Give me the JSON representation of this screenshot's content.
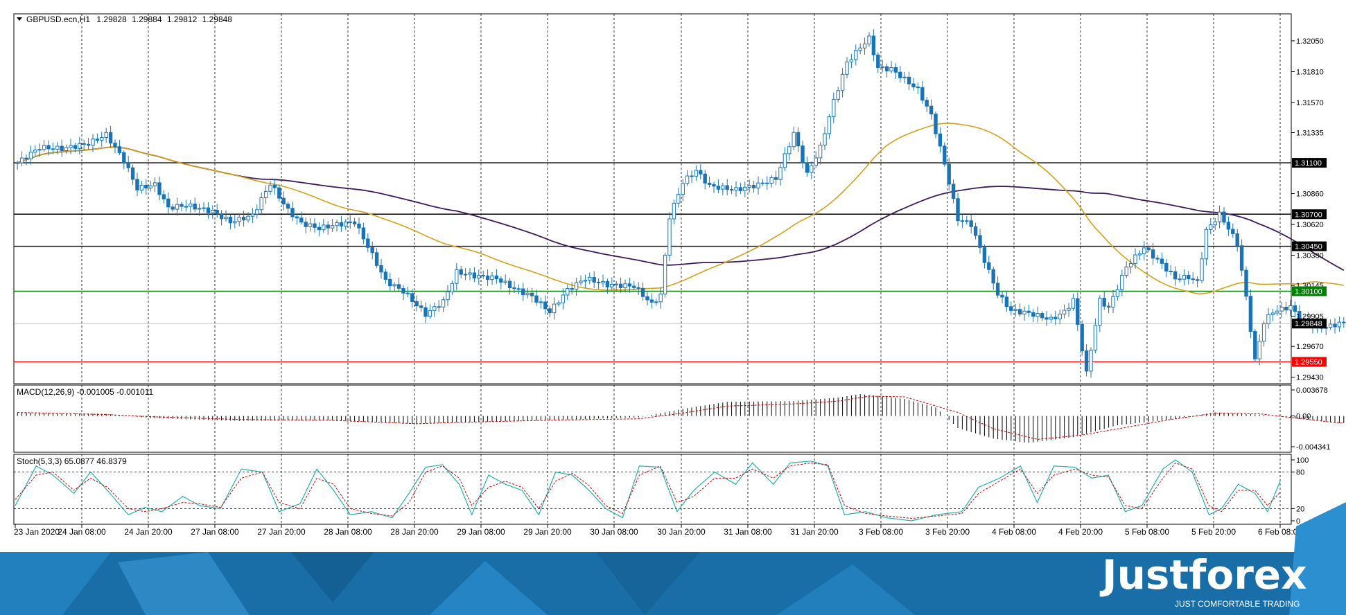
{
  "chart_data": [
    {
      "panel": "price",
      "type": "candlestick",
      "header": {
        "symbol": "GBPUSD.ecn,H1",
        "open": "1.29828",
        "high": "1.29884",
        "low": "1.29812",
        "close": "1.29848"
      },
      "x_tick_labels": [
        "23 Jan 2020",
        "24 Jan 08:00",
        "24 Jan 20:00",
        "27 Jan 08:00",
        "27 Jan 20:00",
        "28 Jan 08:00",
        "28 Jan 20:00",
        "29 Jan 08:00",
        "29 Jan 20:00",
        "30 Jan 08:00",
        "30 Jan 20:00",
        "31 Jan 08:00",
        "31 Jan 20:00",
        "3 Feb 08:00",
        "3 Feb 20:00",
        "4 Feb 08:00",
        "4 Feb 20:00",
        "5 Feb 08:00",
        "5 Feb 20:00",
        "6 Feb 08:00"
      ],
      "y_ticks": [
        "1.32050",
        "1.31810",
        "1.31570",
        "1.31335",
        "1.30860",
        "1.30620",
        "1.30380",
        "1.30145",
        "1.29905",
        "1.29670",
        "1.29430"
      ],
      "ylim": [
        1.2938,
        1.3226
      ],
      "levels": [
        {
          "value": 1.311,
          "label": "1.31100",
          "color": "#000000"
        },
        {
          "value": 1.307,
          "label": "1.30700",
          "color": "#000000"
        },
        {
          "value": 1.3045,
          "label": "1.30450",
          "color": "#000000"
        },
        {
          "value": 1.301,
          "label": "1.30100",
          "color": "#008000"
        },
        {
          "value": 1.2955,
          "label": "1.29550",
          "color": "#ff0000"
        }
      ],
      "current_price": {
        "value": 1.29848,
        "label": "1.29848"
      },
      "grid": "dashed vertical",
      "candle_color": "#1a73b5",
      "close_path": [
        [
          0,
          1.311
        ],
        [
          5,
          1.3122
        ],
        [
          10,
          1.3121
        ],
        [
          16,
          1.3125
        ],
        [
          20,
          1.3132
        ],
        [
          24,
          1.3112
        ],
        [
          27,
          1.309
        ],
        [
          31,
          1.3093
        ],
        [
          34,
          1.3075
        ],
        [
          38,
          1.3077
        ],
        [
          44,
          1.3072
        ],
        [
          48,
          1.3064
        ],
        [
          53,
          1.3069
        ],
        [
          57,
          1.3094
        ],
        [
          61,
          1.3073
        ],
        [
          64,
          1.3063
        ],
        [
          68,
          1.3059
        ],
        [
          72,
          1.3062
        ],
        [
          76,
          1.3064
        ],
        [
          79,
          1.3045
        ],
        [
          83,
          1.3018
        ],
        [
          87,
          1.301
        ],
        [
          92,
          1.2992
        ],
        [
          96,
          1.3002
        ],
        [
          99,
          1.3025
        ],
        [
          103,
          1.3022
        ],
        [
          108,
          1.302
        ],
        [
          112,
          1.3012
        ],
        [
          116,
          1.3006
        ],
        [
          120,
          1.2994
        ],
        [
          124,
          1.3011
        ],
        [
          128,
          1.302
        ],
        [
          133,
          1.3015
        ],
        [
          139,
          1.3014
        ],
        [
          143,
          1.3
        ],
        [
          145,
          1.3007
        ],
        [
          147,
          1.3068
        ],
        [
          150,
          1.3095
        ],
        [
          153,
          1.3104
        ],
        [
          156,
          1.3092
        ],
        [
          162,
          1.3089
        ],
        [
          167,
          1.3093
        ],
        [
          171,
          1.3098
        ],
        [
          175,
          1.3133
        ],
        [
          178,
          1.3101
        ],
        [
          181,
          1.3122
        ],
        [
          184,
          1.3158
        ],
        [
          187,
          1.3188
        ],
        [
          190,
          1.32
        ],
        [
          192,
          1.3207
        ],
        [
          194,
          1.3184
        ],
        [
          197,
          1.3183
        ],
        [
          200,
          1.3175
        ],
        [
          203,
          1.3167
        ],
        [
          206,
          1.3147
        ],
        [
          209,
          1.3109
        ],
        [
          212,
          1.3066
        ],
        [
          215,
          1.3062
        ],
        [
          218,
          1.3034
        ],
        [
          221,
          1.3008
        ],
        [
          224,
          1.2995
        ],
        [
          228,
          1.2993
        ],
        [
          233,
          1.2988
        ],
        [
          236,
          1.2994
        ],
        [
          238,
          1.3003
        ],
        [
          241,
          1.2946
        ],
        [
          244,
          1.3003
        ],
        [
          246,
          1.2997
        ],
        [
          250,
          1.3029
        ],
        [
          254,
          1.3044
        ],
        [
          258,
          1.3031
        ],
        [
          261,
          1.302
        ],
        [
          264,
          1.3021
        ],
        [
          266,
          1.3017
        ],
        [
          268,
          1.3057
        ],
        [
          271,
          1.307
        ],
        [
          273,
          1.3059
        ],
        [
          275,
          1.3047
        ],
        [
          277,
          1.3005
        ],
        [
          279,
          1.2956
        ],
        [
          281,
          1.2986
        ],
        [
          283,
          1.2994
        ],
        [
          287,
          1.2998
        ],
        [
          289,
          1.2989
        ],
        [
          292,
          1.2983
        ],
        [
          295,
          1.2982
        ],
        [
          298,
          1.2985
        ]
      ]
    },
    {
      "panel": "macd",
      "type": "histogram+line",
      "label": "MACD(12,26,9) -0.001005 -0.001011",
      "y_ticks": [
        "0.003678",
        "0.00",
        "-0.004341"
      ],
      "ylim": [
        -0.004341,
        0.003678
      ],
      "histogram_path": [
        [
          0,
          0.0005
        ],
        [
          20,
          0.0003
        ],
        [
          30,
          -0.0003
        ],
        [
          50,
          -0.0007
        ],
        [
          70,
          -0.0006
        ],
        [
          90,
          -0.0011
        ],
        [
          100,
          -0.0009
        ],
        [
          120,
          -0.0006
        ],
        [
          140,
          -0.0002
        ],
        [
          150,
          0.001
        ],
        [
          160,
          0.002
        ],
        [
          175,
          0.0021
        ],
        [
          185,
          0.0026
        ],
        [
          190,
          0.0031
        ],
        [
          200,
          0.0024
        ],
        [
          207,
          0.0012
        ],
        [
          212,
          -0.0017
        ],
        [
          220,
          -0.0032
        ],
        [
          228,
          -0.0038
        ],
        [
          238,
          -0.003
        ],
        [
          248,
          -0.0013
        ],
        [
          260,
          -0.0005
        ],
        [
          270,
          0.0005
        ],
        [
          280,
          0.0002
        ],
        [
          298,
          -0.001
        ]
      ],
      "signal_path": [
        [
          0,
          0.0005
        ],
        [
          20,
          0.0002
        ],
        [
          30,
          -0.0001
        ],
        [
          50,
          -0.0005
        ],
        [
          70,
          -0.0006
        ],
        [
          90,
          -0.0011
        ],
        [
          100,
          -0.0009
        ],
        [
          120,
          -0.0006
        ],
        [
          140,
          -0.0004
        ],
        [
          150,
          0.0004
        ],
        [
          160,
          0.0014
        ],
        [
          175,
          0.0017
        ],
        [
          185,
          0.0021
        ],
        [
          192,
          0.0028
        ],
        [
          200,
          0.0027
        ],
        [
          212,
          0.0005
        ],
        [
          220,
          -0.0018
        ],
        [
          230,
          -0.0033
        ],
        [
          240,
          -0.0027
        ],
        [
          250,
          -0.0016
        ],
        [
          260,
          -0.0005
        ],
        [
          270,
          0.0004
        ],
        [
          280,
          0.0003
        ],
        [
          298,
          -0.001
        ]
      ]
    },
    {
      "panel": "stochastic",
      "type": "line",
      "label": "Stoch(5,3,3) 65.0877 46.8379",
      "y_ticks": [
        "100",
        "80",
        "20",
        "0"
      ],
      "ylim": [
        0,
        100
      ],
      "levels": [
        80,
        20
      ],
      "main_path": [
        [
          0,
          25
        ],
        [
          5,
          90
        ],
        [
          9,
          75
        ],
        [
          14,
          45
        ],
        [
          18,
          80
        ],
        [
          22,
          50
        ],
        [
          27,
          10
        ],
        [
          31,
          22
        ],
        [
          35,
          15
        ],
        [
          40,
          40
        ],
        [
          44,
          25
        ],
        [
          49,
          20
        ],
        [
          54,
          85
        ],
        [
          59,
          80
        ],
        [
          63,
          15
        ],
        [
          68,
          28
        ],
        [
          72,
          85
        ],
        [
          76,
          50
        ],
        [
          80,
          10
        ],
        [
          85,
          15
        ],
        [
          90,
          5
        ],
        [
          94,
          45
        ],
        [
          98,
          88
        ],
        [
          102,
          92
        ],
        [
          106,
          60
        ],
        [
          109,
          10
        ],
        [
          113,
          75
        ],
        [
          117,
          60
        ],
        [
          121,
          50
        ],
        [
          125,
          10
        ],
        [
          129,
          80
        ],
        [
          133,
          75
        ],
        [
          137,
          50
        ],
        [
          141,
          20
        ],
        [
          145,
          5
        ],
        [
          149,
          90
        ],
        [
          154,
          88
        ],
        [
          158,
          15
        ],
        [
          162,
          50
        ],
        [
          167,
          80
        ],
        [
          172,
          60
        ],
        [
          176,
          95
        ],
        [
          181,
          60
        ],
        [
          185,
          95
        ],
        [
          190,
          98
        ],
        [
          194,
          90
        ],
        [
          198,
          10
        ],
        [
          203,
          15
        ],
        [
          208,
          5
        ],
        [
          214,
          0
        ],
        [
          220,
          10
        ],
        [
          226,
          15
        ],
        [
          230,
          55
        ],
        [
          235,
          70
        ],
        [
          240,
          90
        ],
        [
          244,
          30
        ],
        [
          248,
          90
        ],
        [
          253,
          88
        ],
        [
          257,
          70
        ],
        [
          261,
          75
        ],
        [
          265,
          15
        ],
        [
          269,
          25
        ],
        [
          274,
          85
        ],
        [
          277,
          100
        ],
        [
          281,
          80
        ],
        [
          285,
          10
        ],
        [
          288,
          20
        ],
        [
          292,
          60
        ],
        [
          296,
          45
        ],
        [
          299,
          15
        ],
        [
          302,
          65
        ]
      ],
      "signal_path": [
        [
          0,
          35
        ],
        [
          5,
          75
        ],
        [
          9,
          80
        ],
        [
          14,
          50
        ],
        [
          18,
          70
        ],
        [
          22,
          55
        ],
        [
          27,
          20
        ],
        [
          31,
          15
        ],
        [
          35,
          20
        ],
        [
          40,
          30
        ],
        [
          44,
          28
        ],
        [
          49,
          22
        ],
        [
          54,
          70
        ],
        [
          59,
          80
        ],
        [
          63,
          30
        ],
        [
          68,
          20
        ],
        [
          72,
          70
        ],
        [
          76,
          60
        ],
        [
          80,
          20
        ],
        [
          85,
          12
        ],
        [
          90,
          8
        ],
        [
          94,
          30
        ],
        [
          98,
          80
        ],
        [
          102,
          90
        ],
        [
          106,
          70
        ],
        [
          109,
          25
        ],
        [
          113,
          55
        ],
        [
          117,
          65
        ],
        [
          121,
          55
        ],
        [
          125,
          20
        ],
        [
          129,
          65
        ],
        [
          133,
          78
        ],
        [
          137,
          58
        ],
        [
          141,
          25
        ],
        [
          145,
          12
        ],
        [
          149,
          75
        ],
        [
          154,
          90
        ],
        [
          158,
          30
        ],
        [
          162,
          40
        ],
        [
          167,
          70
        ],
        [
          172,
          70
        ],
        [
          176,
          85
        ],
        [
          181,
          70
        ],
        [
          185,
          90
        ],
        [
          190,
          95
        ],
        [
          194,
          92
        ],
        [
          198,
          25
        ],
        [
          203,
          12
        ],
        [
          208,
          8
        ],
        [
          214,
          4
        ],
        [
          220,
          8
        ],
        [
          226,
          12
        ],
        [
          230,
          45
        ],
        [
          235,
          65
        ],
        [
          240,
          85
        ],
        [
          244,
          45
        ],
        [
          248,
          75
        ],
        [
          253,
          85
        ],
        [
          257,
          75
        ],
        [
          261,
          72
        ],
        [
          265,
          25
        ],
        [
          269,
          20
        ],
        [
          274,
          70
        ],
        [
          277,
          95
        ],
        [
          281,
          85
        ],
        [
          285,
          25
        ],
        [
          288,
          15
        ],
        [
          292,
          50
        ],
        [
          296,
          50
        ],
        [
          299,
          25
        ],
        [
          302,
          47
        ]
      ]
    }
  ],
  "branding": {
    "logo_text": "Justforex",
    "tagline": "JUST COMFORTABLE TRADING",
    "background_color": "#1a6ea8",
    "accent_color": "#2b8fd0"
  },
  "colors": {
    "ma_gold": "#d4a017",
    "ma_purple": "#3c1a5b",
    "macd_signal": "#cc0000",
    "stoch_main": "#20b2aa",
    "stoch_signal": "#cc0000"
  }
}
